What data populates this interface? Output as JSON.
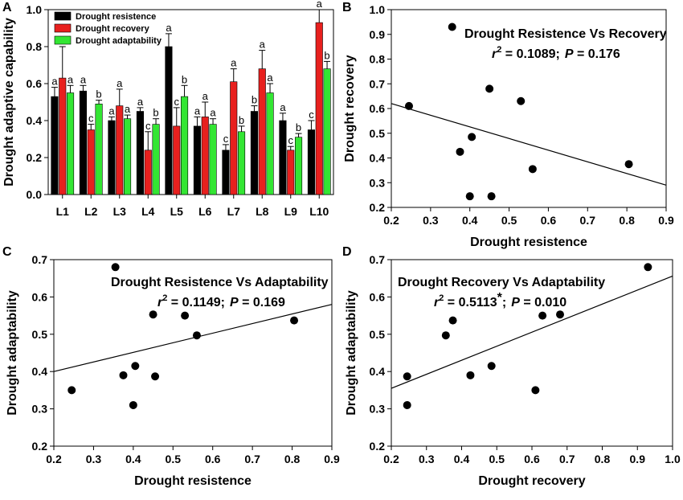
{
  "colors": {
    "resistence": "#000000",
    "recovery": "#e8201e",
    "adaptability": "#33e633"
  },
  "chart_data": [
    {
      "panel": "A",
      "type": "bar",
      "ylabel": "Drought adaptive capability",
      "ylim": [
        0,
        1.0
      ],
      "yticks": [
        "0.0",
        "0.2",
        "0.4",
        "0.6",
        "0.8",
        "1.0"
      ],
      "categories": [
        "L1",
        "L2",
        "L3",
        "L4",
        "L5",
        "L6",
        "L7",
        "L8",
        "L9",
        "L10"
      ],
      "legend": [
        "Drought resistence",
        "Drought recovery",
        "Drought adaptability"
      ],
      "series": [
        {
          "name": "Drought resistence",
          "color": "#000000",
          "values": [
            0.53,
            0.56,
            0.4,
            0.45,
            0.8,
            0.37,
            0.24,
            0.45,
            0.4,
            0.35
          ],
          "errors": [
            0.05,
            0.03,
            0.02,
            0.02,
            0.07,
            0.05,
            0.03,
            0.03,
            0.04,
            0.05
          ],
          "sig": [
            "a",
            "a",
            "a",
            "a",
            "a",
            "a",
            "c",
            "b",
            "a",
            "c"
          ]
        },
        {
          "name": "Drought recovery",
          "color": "#e8201e",
          "values": [
            0.63,
            0.35,
            0.48,
            0.24,
            0.37,
            0.42,
            0.61,
            0.68,
            0.24,
            0.93
          ],
          "errors": [
            0.17,
            0.03,
            0.09,
            0.1,
            0.1,
            0.08,
            0.07,
            0.1,
            0.02,
            0.07
          ],
          "sig": [
            "a",
            "c",
            "a",
            "c",
            "c",
            "a",
            "a",
            "a",
            "c",
            "a"
          ]
        },
        {
          "name": "Drought adaptability",
          "color": "#33e633",
          "values": [
            0.55,
            0.49,
            0.41,
            0.38,
            0.53,
            0.38,
            0.34,
            0.55,
            0.31,
            0.68
          ],
          "errors": [
            0.04,
            0.02,
            0.02,
            0.03,
            0.06,
            0.03,
            0.03,
            0.05,
            0.02,
            0.04
          ],
          "sig": [
            "a",
            "b",
            "a",
            "b",
            "b",
            "a",
            "b",
            "a",
            "b",
            "b"
          ]
        }
      ]
    },
    {
      "panel": "B",
      "type": "scatter",
      "title": "Drought Resistence Vs Recovery",
      "stat_r2": "= 0.1089;",
      "stat_p": "= 0.176",
      "xlabel": "Drought resistence",
      "ylabel": "Drought recovery",
      "xlim": [
        0.2,
        0.9
      ],
      "ylim": [
        0.2,
        1.0
      ],
      "xticks": [
        "0.2",
        "0.3",
        "0.4",
        "0.5",
        "0.6",
        "0.7",
        "0.8",
        "0.9"
      ],
      "yticks": [
        "0.2",
        "0.3",
        "0.4",
        "0.5",
        "0.6",
        "0.7",
        "0.8",
        "0.9",
        "1.0"
      ],
      "points": [
        [
          0.245,
          0.61
        ],
        [
          0.355,
          0.93
        ],
        [
          0.375,
          0.425
        ],
        [
          0.4,
          0.245
        ],
        [
          0.405,
          0.485
        ],
        [
          0.45,
          0.68
        ],
        [
          0.455,
          0.245
        ],
        [
          0.53,
          0.63
        ],
        [
          0.56,
          0.355
        ],
        [
          0.805,
          0.375
        ]
      ],
      "fit": [
        [
          0.2,
          0.62
        ],
        [
          0.9,
          0.29
        ]
      ]
    },
    {
      "panel": "C",
      "type": "scatter",
      "title": "Drought Resistence Vs Adaptability",
      "stat_r2": "= 0.1149;",
      "stat_p": "= 0.169",
      "xlabel": "Drought resistence",
      "ylabel": "Drought adaptability",
      "xlim": [
        0.2,
        0.9
      ],
      "ylim": [
        0.2,
        0.7
      ],
      "xticks": [
        "0.2",
        "0.3",
        "0.4",
        "0.5",
        "0.6",
        "0.7",
        "0.8",
        "0.9"
      ],
      "yticks": [
        "0.2",
        "0.3",
        "0.4",
        "0.5",
        "0.6",
        "0.7"
      ],
      "points": [
        [
          0.245,
          0.35
        ],
        [
          0.355,
          0.68
        ],
        [
          0.375,
          0.39
        ],
        [
          0.4,
          0.31
        ],
        [
          0.405,
          0.415
        ],
        [
          0.45,
          0.553
        ],
        [
          0.455,
          0.387
        ],
        [
          0.53,
          0.55
        ],
        [
          0.56,
          0.497
        ],
        [
          0.805,
          0.537
        ]
      ],
      "fit": [
        [
          0.2,
          0.4
        ],
        [
          0.9,
          0.58
        ]
      ]
    },
    {
      "panel": "D",
      "type": "scatter",
      "title": "Drought Recovery Vs Adaptability",
      "stat_r2": "= 0.5113",
      "stat_r2_mark": "*",
      "stat_p": "= 0.010",
      "xlabel": "Drought recovery",
      "ylabel": "Drought adaptability",
      "xlim": [
        0.2,
        1.0
      ],
      "ylim": [
        0.2,
        0.7
      ],
      "xticks": [
        "0.2",
        "0.3",
        "0.4",
        "0.5",
        "0.6",
        "0.7",
        "0.8",
        "0.9",
        "1.0"
      ],
      "yticks": [
        "0.2",
        "0.3",
        "0.4",
        "0.5",
        "0.6",
        "0.7"
      ],
      "points": [
        [
          0.245,
          0.387
        ],
        [
          0.245,
          0.31
        ],
        [
          0.355,
          0.497
        ],
        [
          0.375,
          0.537
        ],
        [
          0.425,
          0.39
        ],
        [
          0.485,
          0.415
        ],
        [
          0.61,
          0.35
        ],
        [
          0.63,
          0.55
        ],
        [
          0.68,
          0.553
        ],
        [
          0.93,
          0.68
        ]
      ],
      "fit": [
        [
          0.2,
          0.355
        ],
        [
          1.0,
          0.656
        ]
      ]
    }
  ]
}
